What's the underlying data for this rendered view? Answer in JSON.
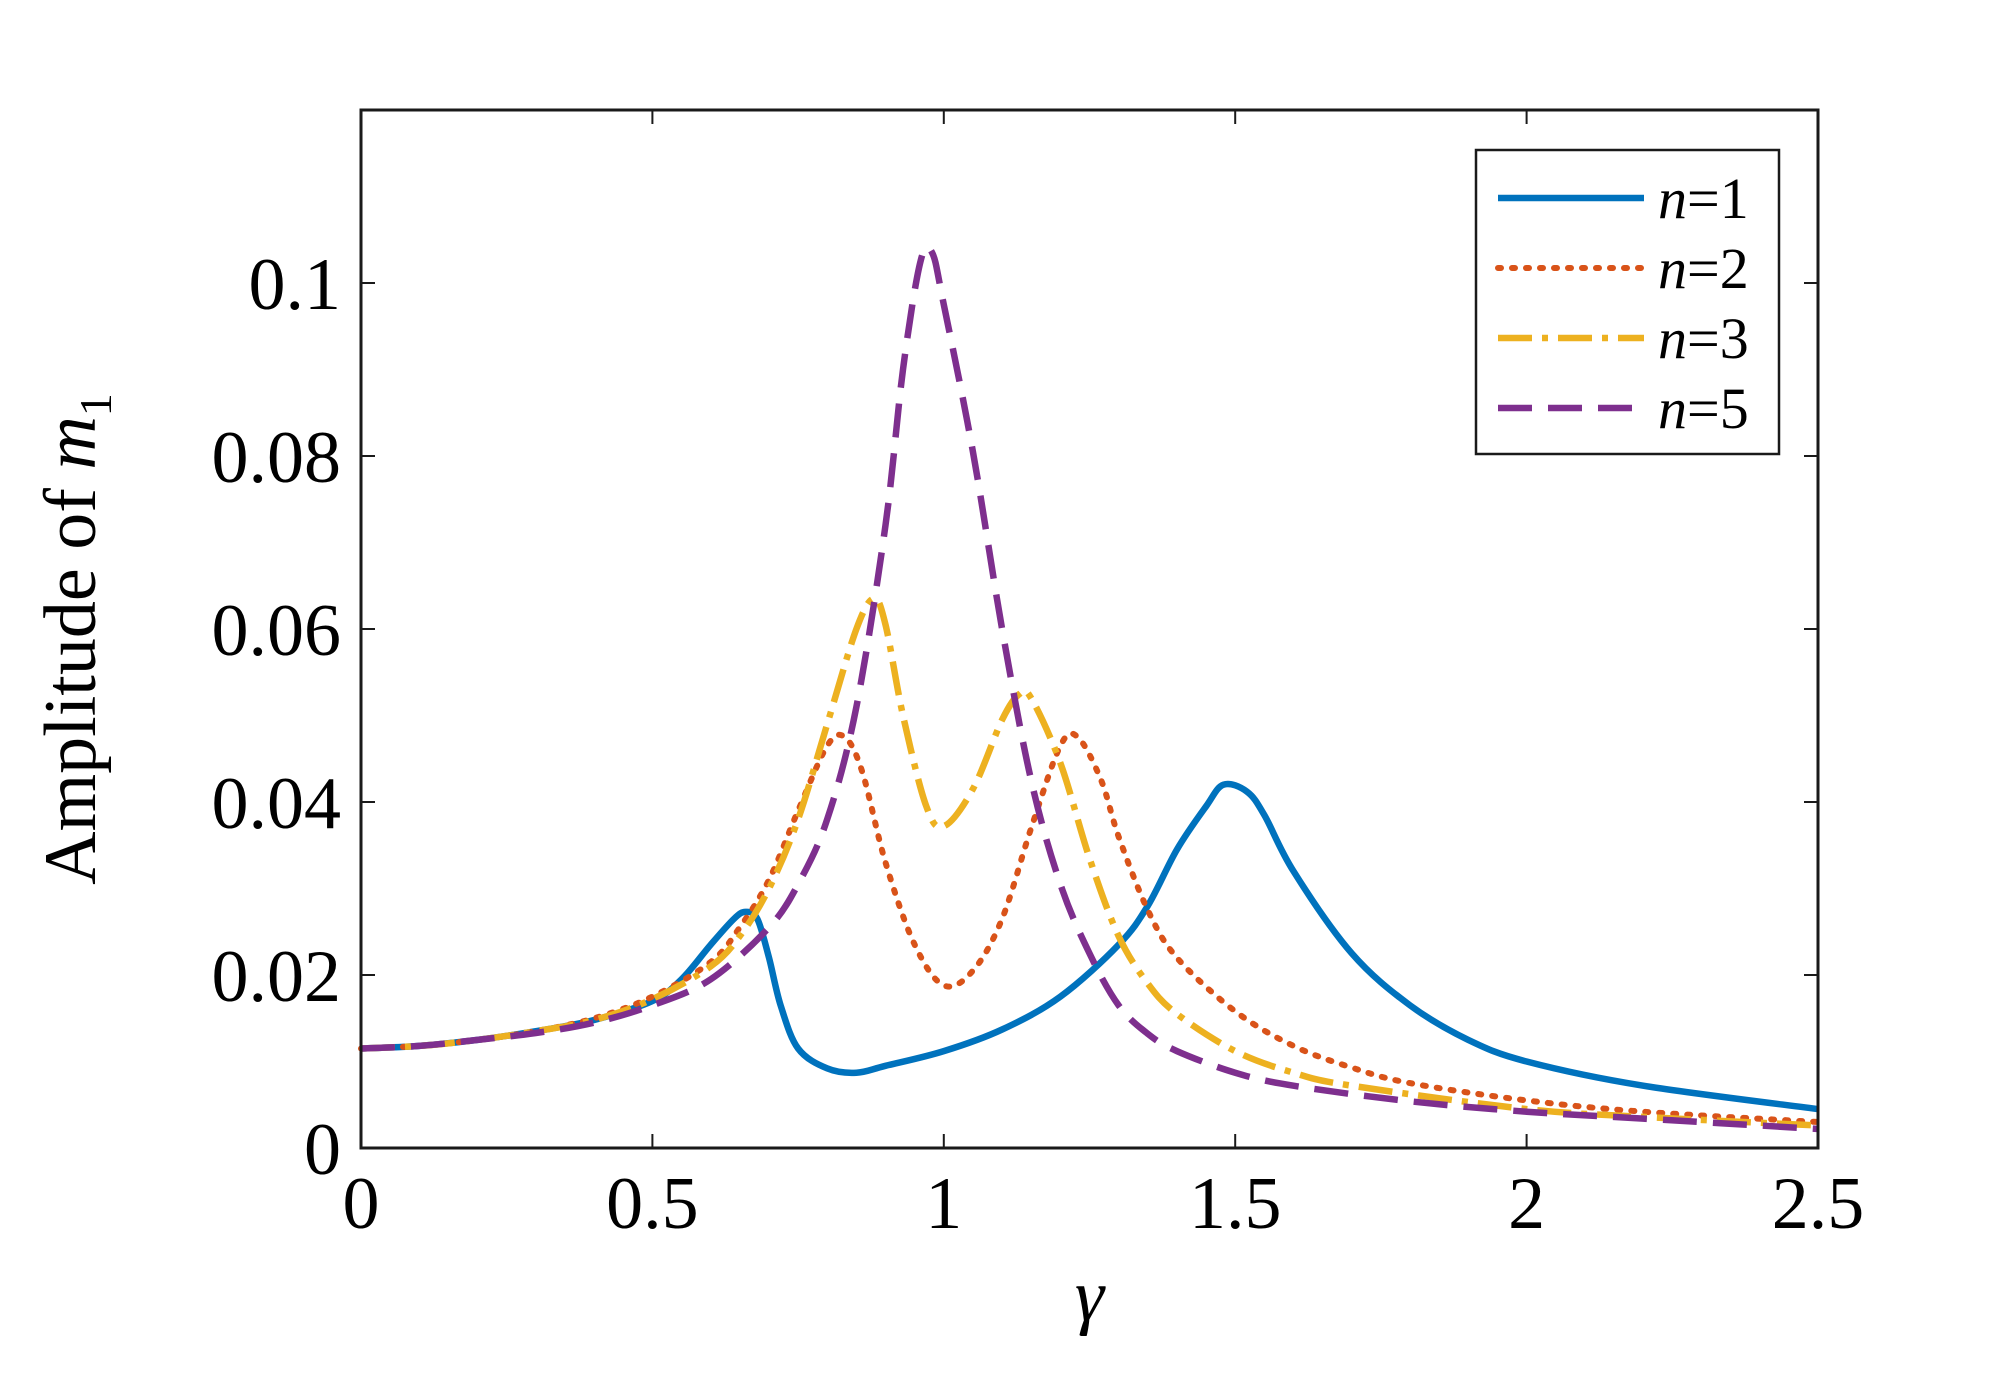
{
  "chart_data": {
    "type": "line",
    "title": "",
    "xlabel": "γ",
    "ylabel_prefix": "Amplitude of ",
    "ylabel_var": "m",
    "ylabel_sub": "1",
    "xlim": [
      0,
      2.5
    ],
    "ylim": [
      0,
      0.12
    ],
    "xticks": [
      0,
      0.5,
      1,
      1.5,
      2,
      2.5
    ],
    "xtick_labels": [
      "0",
      "0.5",
      "1",
      "1.5",
      "2",
      "2.5"
    ],
    "yticks": [
      0,
      0.02,
      0.04,
      0.06,
      0.08,
      0.1
    ],
    "ytick_labels": [
      "0",
      "0.02",
      "0.04",
      "0.06",
      "0.08",
      "0.1"
    ],
    "grid": false,
    "legend_position": "top-right",
    "series": [
      {
        "name": "n=1",
        "label_var": "n",
        "label_rest": "=1",
        "color": "#0072BD",
        "style": "solid",
        "x": [
          0,
          0.1,
          0.2,
          0.3,
          0.4,
          0.5,
          0.55,
          0.6,
          0.64,
          0.66,
          0.68,
          0.7,
          0.72,
          0.75,
          0.8,
          0.85,
          0.9,
          1.0,
          1.1,
          1.2,
          1.3,
          1.35,
          1.4,
          1.45,
          1.48,
          1.52,
          1.55,
          1.6,
          1.7,
          1.8,
          1.9,
          2.0,
          2.2,
          2.5
        ],
        "y": [
          0.0115,
          0.0118,
          0.0125,
          0.0135,
          0.0148,
          0.017,
          0.0195,
          0.0235,
          0.0265,
          0.0273,
          0.0265,
          0.022,
          0.0165,
          0.0115,
          0.0092,
          0.0087,
          0.0095,
          0.0112,
          0.0137,
          0.0175,
          0.0235,
          0.028,
          0.0345,
          0.0395,
          0.042,
          0.0412,
          0.0385,
          0.032,
          0.0225,
          0.0165,
          0.0125,
          0.01,
          0.0072,
          0.0045
        ]
      },
      {
        "name": "n=2",
        "label_var": "n",
        "label_rest": "=2",
        "color": "#D95319",
        "style": "dotted",
        "x": [
          0,
          0.1,
          0.2,
          0.3,
          0.4,
          0.5,
          0.6,
          0.65,
          0.7,
          0.75,
          0.8,
          0.83,
          0.86,
          0.9,
          0.95,
          1.0,
          1.05,
          1.1,
          1.15,
          1.2,
          1.23,
          1.27,
          1.3,
          1.35,
          1.4,
          1.5,
          1.6,
          1.7,
          1.8,
          2.0,
          2.2,
          2.5
        ],
        "y": [
          0.0115,
          0.0118,
          0.0125,
          0.0135,
          0.015,
          0.0175,
          0.0215,
          0.0255,
          0.031,
          0.039,
          0.0465,
          0.0475,
          0.0435,
          0.033,
          0.0235,
          0.0188,
          0.0205,
          0.0265,
          0.037,
          0.0465,
          0.0475,
          0.0425,
          0.036,
          0.0275,
          0.022,
          0.0158,
          0.0118,
          0.0093,
          0.0075,
          0.0055,
          0.0042,
          0.003
        ]
      },
      {
        "name": "n=3",
        "label_var": "n",
        "label_rest": "=3",
        "color": "#EDB120",
        "style": "dashdot",
        "x": [
          0,
          0.1,
          0.2,
          0.3,
          0.4,
          0.5,
          0.6,
          0.65,
          0.7,
          0.75,
          0.8,
          0.85,
          0.88,
          0.9,
          0.93,
          0.97,
          1.0,
          1.05,
          1.1,
          1.13,
          1.15,
          1.2,
          1.25,
          1.3,
          1.35,
          1.4,
          1.5,
          1.6,
          1.7,
          2.0,
          2.2,
          2.5
        ],
        "y": [
          0.0115,
          0.0118,
          0.0125,
          0.0135,
          0.0148,
          0.0172,
          0.021,
          0.0245,
          0.03,
          0.038,
          0.049,
          0.06,
          0.0635,
          0.0605,
          0.05,
          0.0395,
          0.0372,
          0.0415,
          0.0495,
          0.0525,
          0.052,
          0.0445,
          0.0335,
          0.0245,
          0.019,
          0.0155,
          0.0112,
          0.0087,
          0.0072,
          0.0045,
          0.0036,
          0.0026
        ]
      },
      {
        "name": "n=5",
        "label_var": "n",
        "label_rest": "=5",
        "color": "#7E2F8E",
        "style": "dashed",
        "x": [
          0,
          0.1,
          0.2,
          0.3,
          0.4,
          0.5,
          0.6,
          0.7,
          0.75,
          0.8,
          0.85,
          0.9,
          0.93,
          0.96,
          0.98,
          1.0,
          1.05,
          1.1,
          1.15,
          1.2,
          1.25,
          1.3,
          1.35,
          1.4,
          1.5,
          1.6,
          1.8,
          2.0,
          2.2,
          2.5
        ],
        "y": [
          0.0115,
          0.0118,
          0.0125,
          0.0133,
          0.0145,
          0.0165,
          0.0195,
          0.0255,
          0.0305,
          0.038,
          0.051,
          0.072,
          0.09,
          0.1025,
          0.1035,
          0.0975,
          0.0805,
          0.06,
          0.0425,
          0.0305,
          0.0225,
          0.0165,
          0.0132,
          0.0112,
          0.0087,
          0.0072,
          0.0054,
          0.0042,
          0.0034,
          0.0022
        ]
      }
    ]
  }
}
